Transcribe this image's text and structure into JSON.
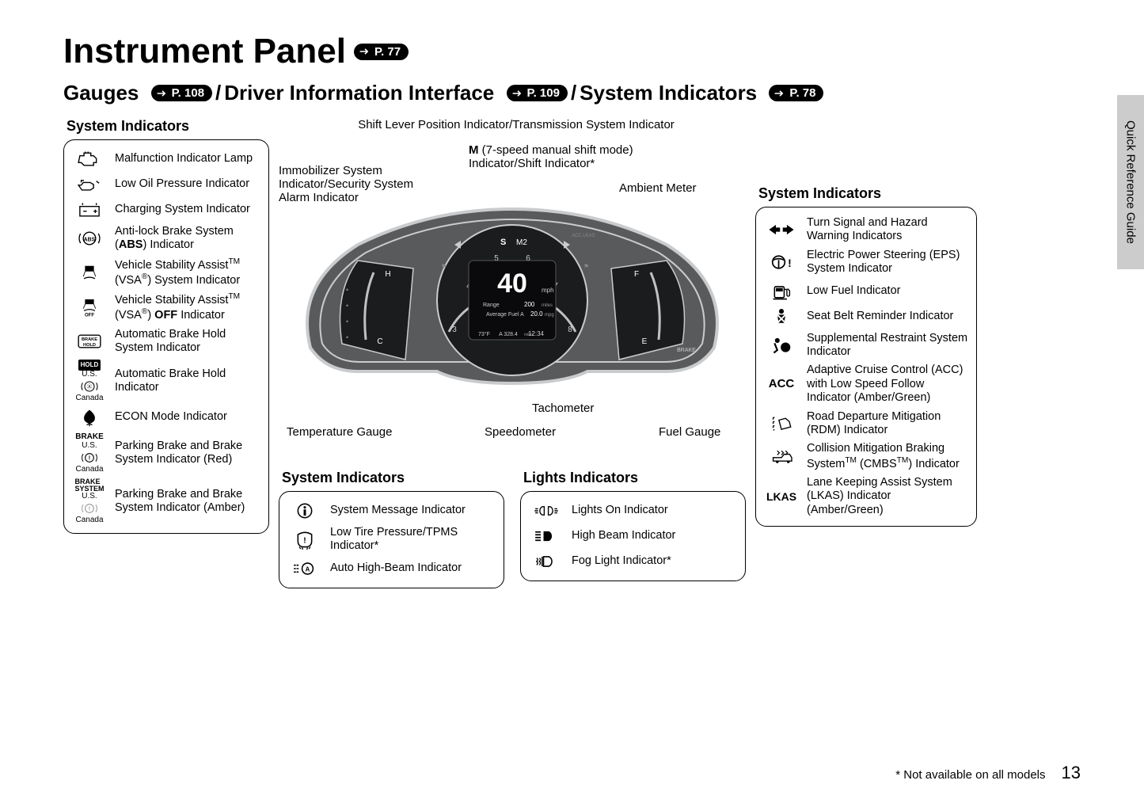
{
  "page": {
    "side_tab": "Quick Reference Guide",
    "page_number": "13",
    "footnote": "* Not available on all models"
  },
  "title": {
    "main": "Instrument Panel",
    "main_pill": "P. 77",
    "sub_parts": {
      "gauges": "Gauges",
      "gauges_pill": "P. 108",
      "dii": "Driver Information Interface",
      "dii_pill": "P. 109",
      "sysind": "System Indicators",
      "sysind_pill": "P. 78"
    }
  },
  "left_panel": {
    "title": "System Indicators",
    "items": [
      {
        "icon": "engine",
        "label": "Malfunction Indicator Lamp"
      },
      {
        "icon": "oilcan",
        "label": "Low Oil Pressure Indicator"
      },
      {
        "icon": "battery",
        "label": "Charging System Indicator"
      },
      {
        "icon": "abs",
        "label_html": "Anti-lock Brake System (<b>ABS</b>) Indicator"
      },
      {
        "icon": "vsa",
        "label_html": "Vehicle Stability Assist<sup>TM</sup> (VSA<sup>®</sup>) System Indicator"
      },
      {
        "icon": "vsa_off",
        "label_html": "Vehicle Stability Assist<sup>TM</sup> (VSA<sup>®</sup>) <b>OFF</b> Indicator"
      },
      {
        "icon": "brake_hold_box",
        "label": "Automatic Brake Hold System Indicator"
      },
      {
        "icon": "hold_dual",
        "label": "Automatic Brake Hold Indicator",
        "us": "U.S.",
        "ca": "Canada"
      },
      {
        "icon": "econ",
        "label": "ECON Mode Indicator"
      },
      {
        "icon": "brake_red",
        "label": "Parking Brake and Brake System Indicator (Red)",
        "us": "U.S.",
        "ca": "Canada"
      },
      {
        "icon": "brake_amber",
        "label": "Parking Brake and Brake System Indicator (Amber)",
        "us": "U.S.",
        "ca": "Canada"
      }
    ]
  },
  "center": {
    "callouts": {
      "shift_lever": "Shift Lever Position Indicator/Transmission System Indicator",
      "m7_html": "<b>M</b> (7-speed manual shift mode) Indicator/Shift Indicator*",
      "immobilizer": "Immobilizer System Indicator/Security System Alarm Indicator",
      "ambient": "Ambient Meter",
      "tachometer": "Tachometer",
      "speedometer": "Speedometer",
      "fuel_gauge": "Fuel Gauge",
      "temp_gauge": "Temperature Gauge"
    },
    "cluster_data": {
      "speed": "40",
      "speed_unit": "mph",
      "range_label": "Range",
      "range_value": "200",
      "range_unit": "miles",
      "avg_fuel_label": "Average Fuel A",
      "avg_fuel_value": "20.0",
      "avg_fuel_unit": "mpg",
      "temp": "73°F",
      "odometer": "A 328.4",
      "odometer_unit": "miles",
      "time": "12:34",
      "shift_pos": "S",
      "shift_gear": "M2",
      "tach_marks": [
        "3",
        "4",
        "5",
        "6",
        "7",
        "8"
      ],
      "gauge_left": {
        "low": "C",
        "high": "H"
      },
      "gauge_right": {
        "low": "E",
        "high": "F"
      },
      "colors": {
        "body": "#595a5c",
        "border": "#c9cbcd",
        "screen": "#1b1c1e",
        "accent": "#ffffff",
        "arc": "#bfc2c5"
      }
    },
    "sys_panel": {
      "title": "System Indicators",
      "items": [
        {
          "icon": "info",
          "label": "System Message Indicator"
        },
        {
          "icon": "tpms",
          "label": "Low Tire Pressure/TPMS Indicator*"
        },
        {
          "icon": "auto_highbeam",
          "label": "Auto High-Beam Indicator"
        }
      ]
    },
    "lights_panel": {
      "title": "Lights Indicators",
      "items": [
        {
          "icon": "lights_on",
          "label": "Lights On Indicator"
        },
        {
          "icon": "high_beam",
          "label": "High Beam Indicator"
        },
        {
          "icon": "fog",
          "label": "Fog Light Indicator*"
        }
      ]
    }
  },
  "right_panel": {
    "title": "System Indicators",
    "items": [
      {
        "icon": "turn_signals",
        "label": "Turn Signal and Hazard Warning Indicators"
      },
      {
        "icon": "eps",
        "label": "Electric Power Steering (EPS) System Indicator"
      },
      {
        "icon": "low_fuel",
        "label": "Low Fuel Indicator"
      },
      {
        "icon": "seatbelt",
        "label": "Seat Belt Reminder Indicator"
      },
      {
        "icon": "srs",
        "label": "Supplemental Restraint System Indicator"
      },
      {
        "icon": "acc_text",
        "label": "Adaptive Cruise Control (ACC) with Low Speed Follow Indicator (Amber/Green)"
      },
      {
        "icon": "rdm",
        "label": "Road Departure Mitigation (RDM) Indicator"
      },
      {
        "icon": "cmbs",
        "label_html": "Collision Mitigation Braking System<sup>TM</sup> (CMBS<sup>TM</sup>) Indicator"
      },
      {
        "icon": "lkas_text",
        "label": "Lane Keeping Assist System (LKAS) Indicator (Amber/Green)"
      }
    ]
  }
}
